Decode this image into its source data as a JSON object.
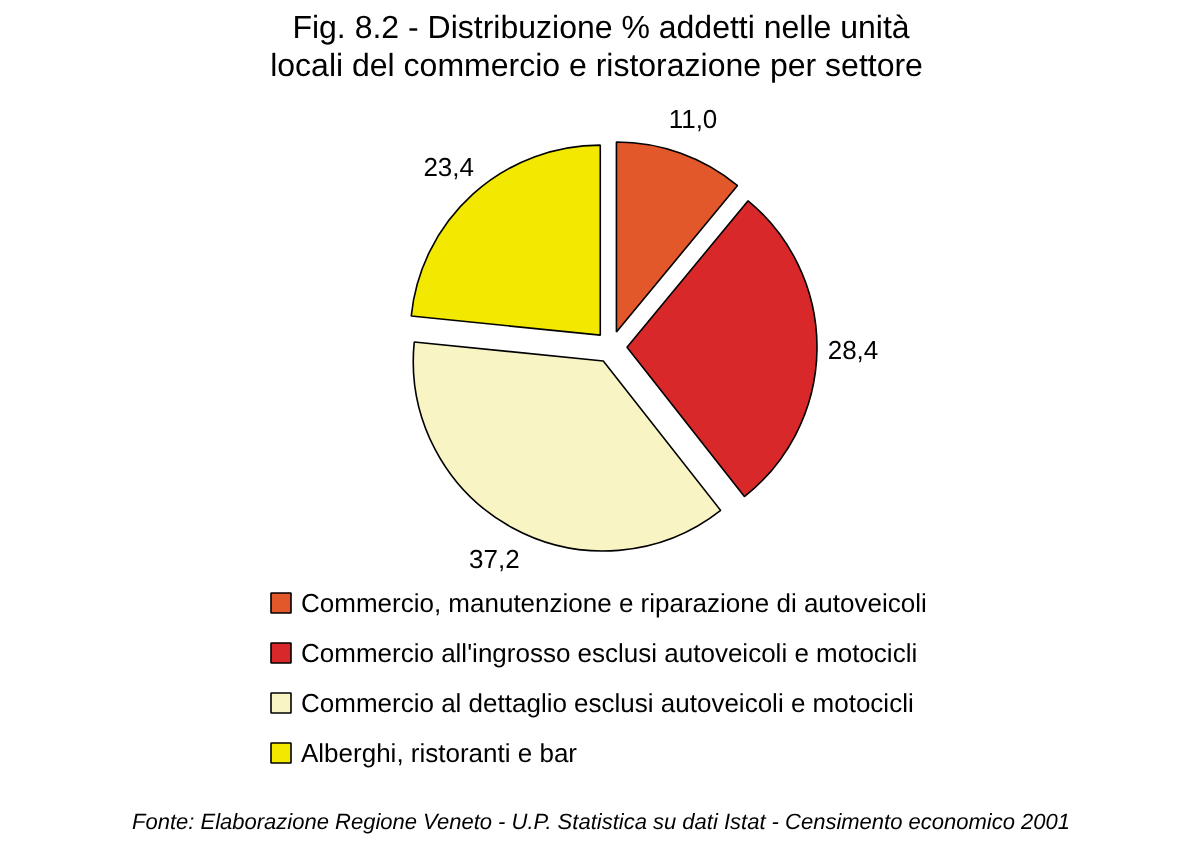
{
  "chart_data": {
    "type": "pie",
    "title": "Fig. 8.2 - Distribuzione % addetti nelle unità\nlocali  del commercio e ristorazione per settore",
    "categories": [
      "Commercio, manutenzione e riparazione di autoveicoli",
      "Commercio all'ingrosso esclusi autoveicoli e motocicli",
      "Commercio al dettaglio esclusi autoveicoli e motocicli",
      "Alberghi, ristoranti e bar"
    ],
    "values": [
      11.0,
      28.4,
      37.2,
      23.4
    ],
    "value_labels": [
      "11,0",
      "28,4",
      "37,2",
      "23,4"
    ],
    "colors": [
      "#e2582a",
      "#d8282a",
      "#f8f4c4",
      "#f2e800"
    ],
    "legend": "bottom",
    "annotations": [
      "Fonte: Elaborazione Regione Veneto - U.P. Statistica su dati Istat - Censimento economico 2001"
    ]
  }
}
